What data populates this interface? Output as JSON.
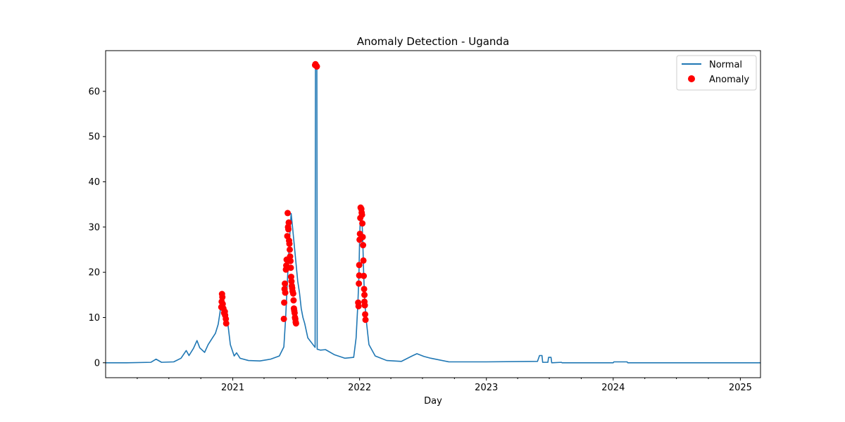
{
  "chart_data": {
    "type": "line",
    "title": "Anomaly Detection - Uganda",
    "xlabel": "Day",
    "ylabel": "",
    "xlim": [
      "2020-01-01",
      "2025-02-28"
    ],
    "ylim": [
      -3.3,
      69
    ],
    "x_ticks": [
      "2021-01-01",
      "2022-01-01",
      "2023-01-01",
      "2024-01-01",
      "2025-01-01"
    ],
    "x_tick_labels": [
      "2021",
      "2022",
      "2023",
      "2024",
      "2025"
    ],
    "y_ticks": [
      0,
      10,
      20,
      30,
      40,
      50,
      60
    ],
    "y_tick_labels": [
      "0",
      "10",
      "20",
      "30",
      "40",
      "50",
      "60"
    ],
    "grid": false,
    "legend": {
      "position": "top-right",
      "entries": [
        "Normal",
        "Anomaly"
      ]
    },
    "colors": {
      "normal": "#1f77b4",
      "anomaly": "#ff0000"
    },
    "series": [
      {
        "name": "Normal",
        "kind": "line",
        "points": [
          [
            "2020-01-01",
            0
          ],
          [
            "2020-03-01",
            0
          ],
          [
            "2020-05-10",
            0.1
          ],
          [
            "2020-05-25",
            0.8
          ],
          [
            "2020-06-10",
            0.1
          ],
          [
            "2020-07-15",
            0.2
          ],
          [
            "2020-08-05",
            1.0
          ],
          [
            "2020-08-20",
            2.7
          ],
          [
            "2020-08-28",
            1.6
          ],
          [
            "2020-09-10",
            3.2
          ],
          [
            "2020-09-20",
            4.9
          ],
          [
            "2020-09-28",
            3.3
          ],
          [
            "2020-10-12",
            2.3
          ],
          [
            "2020-10-22",
            4.0
          ],
          [
            "2020-11-01",
            5.2
          ],
          [
            "2020-11-12",
            6.5
          ],
          [
            "2020-11-20",
            8.5
          ],
          [
            "2020-11-25",
            11.0
          ],
          [
            "2020-12-01",
            15.0
          ],
          [
            "2020-12-06",
            12.0
          ],
          [
            "2020-12-12",
            10.5
          ],
          [
            "2020-12-18",
            8.5
          ],
          [
            "2020-12-25",
            4.0
          ],
          [
            "2021-01-05",
            1.5
          ],
          [
            "2021-01-12",
            2.2
          ],
          [
            "2021-01-22",
            1.0
          ],
          [
            "2021-02-15",
            0.5
          ],
          [
            "2021-03-20",
            0.4
          ],
          [
            "2021-04-20",
            0.8
          ],
          [
            "2021-05-15",
            1.5
          ],
          [
            "2021-05-28",
            3.5
          ],
          [
            "2021-06-02",
            9.7
          ],
          [
            "2021-06-06",
            16.0
          ],
          [
            "2021-06-10",
            22.5
          ],
          [
            "2021-06-14",
            28.0
          ],
          [
            "2021-06-18",
            33.0
          ],
          [
            "2021-06-22",
            30.0
          ],
          [
            "2021-06-27",
            26.0
          ],
          [
            "2021-07-02",
            22.0
          ],
          [
            "2021-07-07",
            18.0
          ],
          [
            "2021-07-12",
            15.5
          ],
          [
            "2021-07-17",
            12.0
          ],
          [
            "2021-07-22",
            10.0
          ],
          [
            "2021-07-27",
            8.7
          ],
          [
            "2021-08-05",
            5.5
          ],
          [
            "2021-08-20",
            4.0
          ],
          [
            "2021-08-26",
            3.4
          ],
          [
            "2021-08-27",
            65.8
          ],
          [
            "2021-08-31",
            65.8
          ],
          [
            "2021-09-01",
            3.0
          ],
          [
            "2021-09-10",
            2.8
          ],
          [
            "2021-09-25",
            2.9
          ],
          [
            "2021-10-20",
            1.8
          ],
          [
            "2021-11-20",
            1.0
          ],
          [
            "2021-12-15",
            1.2
          ],
          [
            "2021-12-22",
            5.5
          ],
          [
            "2021-12-27",
            13.0
          ],
          [
            "2021-12-30",
            19.0
          ],
          [
            "2022-01-01",
            27.0
          ],
          [
            "2022-01-04",
            34.2
          ],
          [
            "2022-01-07",
            33.0
          ],
          [
            "2022-01-10",
            27.5
          ],
          [
            "2022-01-13",
            19.0
          ],
          [
            "2022-01-16",
            13.5
          ],
          [
            "2022-01-20",
            9.5
          ],
          [
            "2022-01-28",
            4.0
          ],
          [
            "2022-02-15",
            1.5
          ],
          [
            "2022-03-20",
            0.5
          ],
          [
            "2022-05-01",
            0.3
          ],
          [
            "2022-06-01",
            1.5
          ],
          [
            "2022-06-15",
            2.0
          ],
          [
            "2022-07-05",
            1.4
          ],
          [
            "2022-07-25",
            1.0
          ],
          [
            "2022-09-15",
            0.2
          ],
          [
            "2022-11-01",
            0.2
          ],
          [
            "2022-12-01",
            0.2
          ],
          [
            "2023-01-01",
            0.2
          ],
          [
            "2023-05-28",
            0.3
          ],
          [
            "2023-06-03",
            1.6
          ],
          [
            "2023-06-10",
            1.6
          ],
          [
            "2023-06-12",
            0.1
          ],
          [
            "2023-06-27",
            0.1
          ],
          [
            "2023-06-29",
            1.2
          ],
          [
            "2023-07-06",
            1.2
          ],
          [
            "2023-07-08",
            0
          ],
          [
            "2023-08-05",
            0.1
          ],
          [
            "2023-08-07",
            0
          ],
          [
            "2024-01-01",
            0
          ],
          [
            "2024-01-03",
            0.2
          ],
          [
            "2024-02-10",
            0.2
          ],
          [
            "2024-02-12",
            0
          ],
          [
            "2025-02-28",
            0
          ]
        ]
      },
      {
        "name": "Anomaly",
        "kind": "scatter",
        "points": [
          [
            "2020-11-29",
            12.3
          ],
          [
            "2020-11-30",
            13.5
          ],
          [
            "2020-12-01",
            15.2
          ],
          [
            "2020-12-02",
            14.5
          ],
          [
            "2020-12-03",
            13.0
          ],
          [
            "2020-12-05",
            12.0
          ],
          [
            "2020-12-07",
            11.0
          ],
          [
            "2020-12-09",
            11.3
          ],
          [
            "2020-12-10",
            10.5
          ],
          [
            "2020-12-12",
            9.7
          ],
          [
            "2020-12-13",
            8.7
          ],
          [
            "2021-05-28",
            9.7
          ],
          [
            "2021-05-29",
            13.3
          ],
          [
            "2021-05-30",
            16.3
          ],
          [
            "2021-05-31",
            17.5
          ],
          [
            "2021-06-01",
            15.5
          ],
          [
            "2021-06-03",
            20.6
          ],
          [
            "2021-06-04",
            21.5
          ],
          [
            "2021-06-05",
            22.8
          ],
          [
            "2021-06-07",
            28.0
          ],
          [
            "2021-06-08",
            33.1
          ],
          [
            "2021-06-09",
            30.0
          ],
          [
            "2021-06-10",
            29.5
          ],
          [
            "2021-06-11",
            31.0
          ],
          [
            "2021-06-12",
            27.0
          ],
          [
            "2021-06-13",
            26.3
          ],
          [
            "2021-06-14",
            25.0
          ],
          [
            "2021-06-15",
            23.5
          ],
          [
            "2021-06-16",
            22.5
          ],
          [
            "2021-06-17",
            21.0
          ],
          [
            "2021-06-18",
            19.0
          ],
          [
            "2021-06-19",
            18.0
          ],
          [
            "2021-06-20",
            17.0
          ],
          [
            "2021-06-21",
            16.5
          ],
          [
            "2021-06-22",
            15.8
          ],
          [
            "2021-06-24",
            15.3
          ],
          [
            "2021-06-25",
            13.8
          ],
          [
            "2021-06-26",
            12.0
          ],
          [
            "2021-06-27",
            11.5
          ],
          [
            "2021-06-28",
            11.0
          ],
          [
            "2021-06-29",
            10.0
          ],
          [
            "2021-06-30",
            9.7
          ],
          [
            "2021-07-01",
            9.0
          ],
          [
            "2021-07-02",
            8.7
          ],
          [
            "2021-08-26",
            65.8
          ],
          [
            "2021-08-27",
            66.0
          ],
          [
            "2021-08-29",
            65.7
          ],
          [
            "2021-08-31",
            65.5
          ],
          [
            "2021-12-28",
            13.3
          ],
          [
            "2021-12-29",
            12.5
          ],
          [
            "2021-12-30",
            17.5
          ],
          [
            "2021-12-31",
            19.3
          ],
          [
            "2021-12-31",
            21.6
          ],
          [
            "2022-01-01",
            27.2
          ],
          [
            "2022-01-02",
            28.5
          ],
          [
            "2022-01-03",
            32.0
          ],
          [
            "2022-01-04",
            34.3
          ],
          [
            "2022-01-06",
            34.0
          ],
          [
            "2022-01-07",
            33.2
          ],
          [
            "2022-01-08",
            32.7
          ],
          [
            "2022-01-09",
            30.8
          ],
          [
            "2022-01-10",
            27.8
          ],
          [
            "2022-01-11",
            26.0
          ],
          [
            "2022-01-12",
            22.6
          ],
          [
            "2022-01-13",
            19.2
          ],
          [
            "2022-01-14",
            16.3
          ],
          [
            "2022-01-15",
            15.0
          ],
          [
            "2022-01-15",
            13.5
          ],
          [
            "2022-01-16",
            12.7
          ],
          [
            "2022-01-17",
            10.7
          ],
          [
            "2022-01-18",
            9.5
          ]
        ]
      }
    ]
  }
}
